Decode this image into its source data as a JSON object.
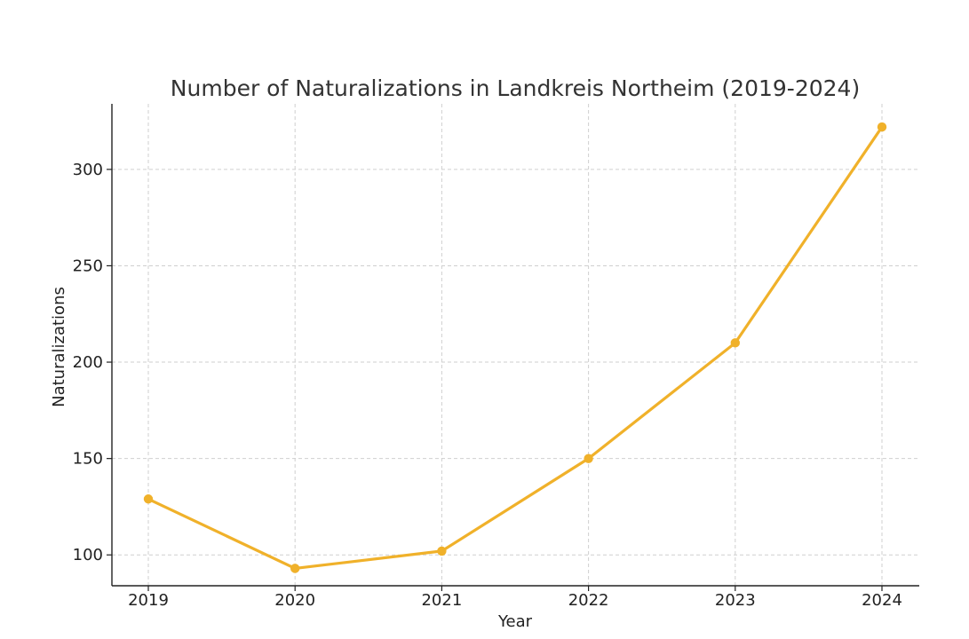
{
  "chart_data": {
    "type": "line",
    "title": "Number of Naturalizations in Landkreis Northeim (2019-2024)",
    "xlabel": "Year",
    "ylabel": "Naturalizations",
    "categories": [
      "2019",
      "2020",
      "2021",
      "2022",
      "2023",
      "2024"
    ],
    "series": [
      {
        "values": [
          129,
          93,
          102,
          150,
          210,
          322
        ],
        "color": "#f0b12a"
      }
    ],
    "ylim": [
      84,
      334
    ],
    "yticks": [
      100,
      150,
      200,
      250,
      300
    ],
    "grid": true,
    "legend": "none"
  }
}
